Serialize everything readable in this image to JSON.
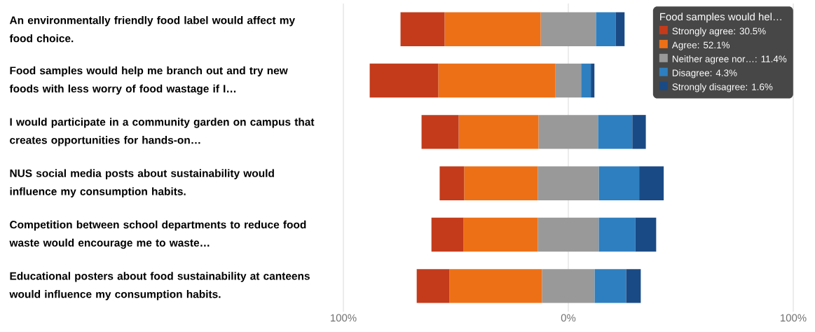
{
  "chart_data": {
    "type": "bar",
    "orientation": "horizontal",
    "stacked": true,
    "categories": [
      "An environmentally friendly food label would affect my food choice.",
      "Food samples would help me branch out and try new foods with less worry of food wastage if I…",
      "I would participate in a community garden on campus that creates opportunities for hands-on…",
      "NUS social media posts about sustainability would influence my consumption habits.",
      "Competition between school departments to reduce food waste would encourage me to waste…",
      "Educational posters about food sustainability at canteens would influence my consumption habits."
    ],
    "series": [
      {
        "name": "Neither agree nor…: 11.4%",
        "color": "#999999",
        "values": [
          -12.3,
          -5.7,
          -13.25,
          -13.6,
          -13.55,
          -11.7
        ]
      },
      {
        "color": "#999999",
        "values": [
          12.3,
          5.7,
          13.25,
          13.6,
          13.55,
          11.7
        ]
      },
      {
        "name": "Agree: 52.1%",
        "color": "#ee7016",
        "values": [
          -42.7,
          -52.1,
          -35.5,
          -32.7,
          -33.0,
          -41.1
        ]
      },
      {
        "name": "Disagree: 4.3%",
        "color": "#2e7fbf",
        "values": [
          8.7,
          4.3,
          15.2,
          17.9,
          16.2,
          14.0
        ]
      },
      {
        "name": "Strongly agree: 30.5%",
        "color": "#c33b1b",
        "values": [
          -19.6,
          -30.5,
          -16.5,
          -10.9,
          -14.3,
          -14.6
        ]
      },
      {
        "name": "Strongly disagree: 1.6%",
        "color": "#1a4a85",
        "values": [
          4.0,
          1.6,
          6.0,
          10.9,
          9.3,
          6.5
        ]
      }
    ],
    "xlim": [
      -100,
      100
    ],
    "xticks": [
      {
        "value": -100,
        "label": "100%"
      },
      {
        "value": 0,
        "label": "0%"
      },
      {
        "value": 100,
        "label": "100%"
      }
    ],
    "grid": "x",
    "legend": "top right",
    "legend_title": "Food samples would hel…"
  }
}
